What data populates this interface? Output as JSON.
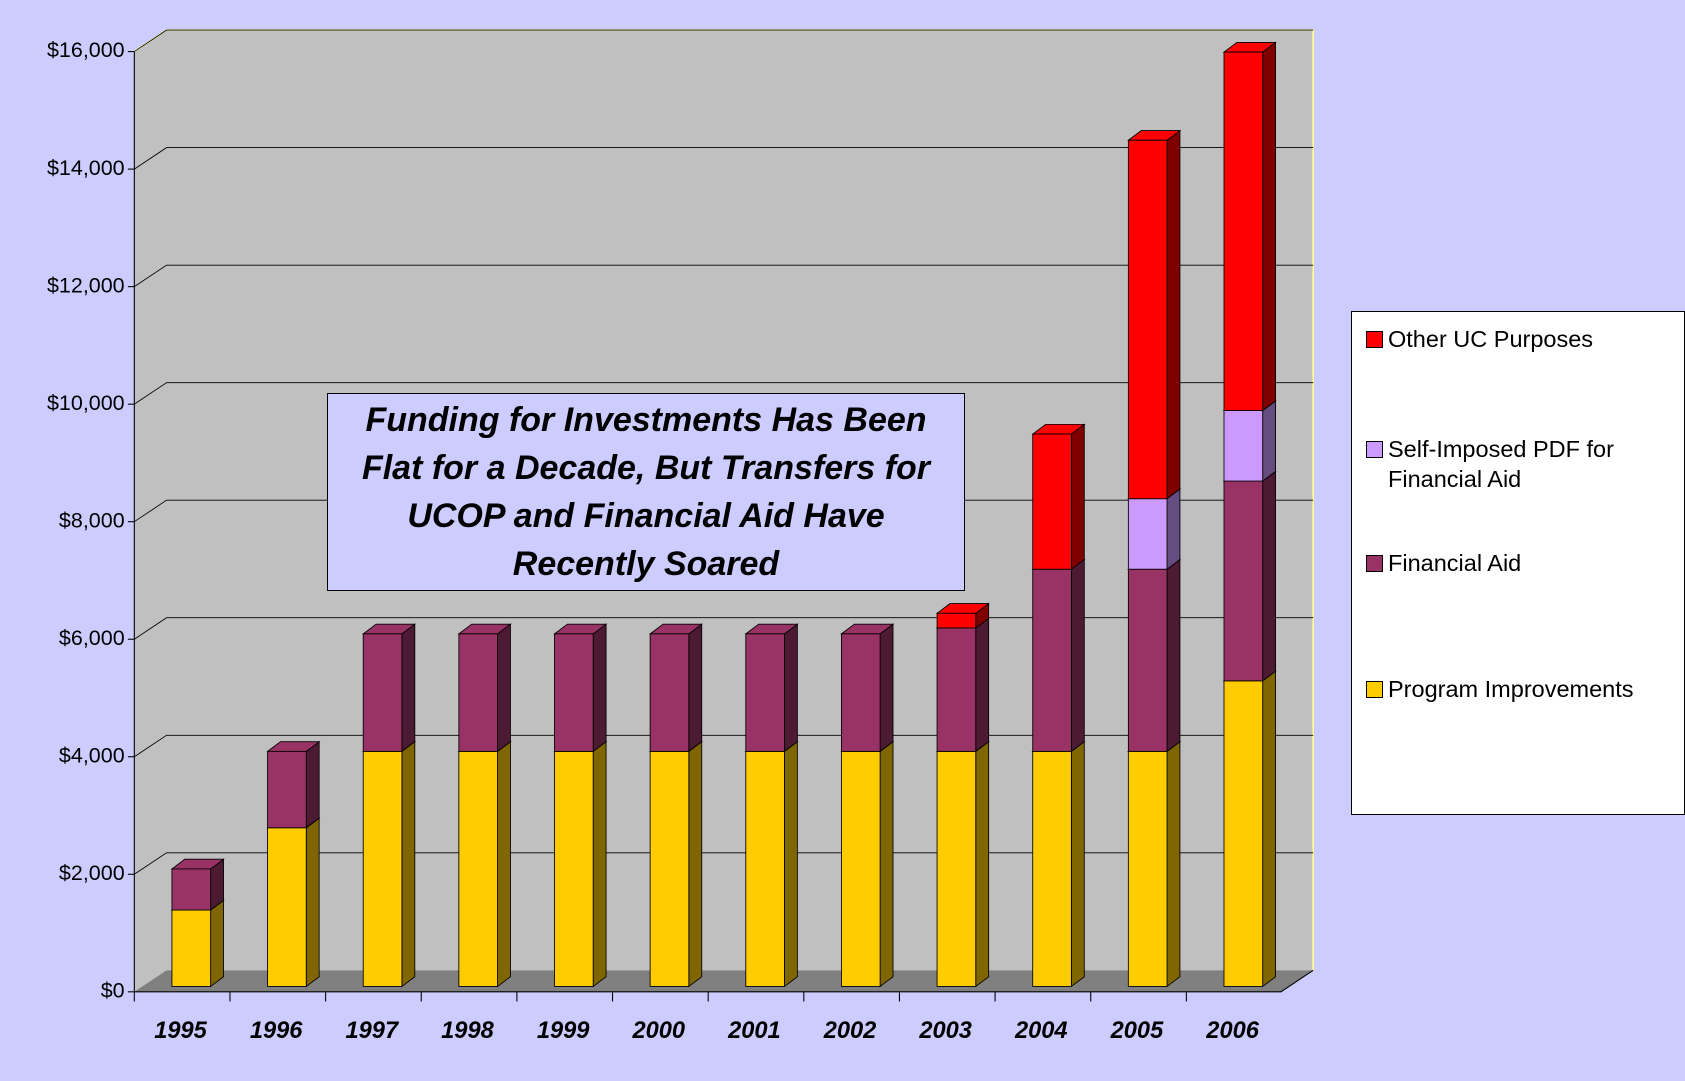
{
  "chart_data": {
    "type": "stacked-bar-3d",
    "annotation": "Funding for Investments Has Been Flat for a Decade, But Transfers for UCOP and Financial Aid Have Recently Soared",
    "categories": [
      "1995",
      "1996",
      "1997",
      "1998",
      "1999",
      "2000",
      "2001",
      "2002",
      "2003",
      "2004",
      "2005",
      "2006"
    ],
    "series": [
      {
        "name": "Program Improvements",
        "color": "#ffcc00",
        "side": "#806600",
        "values": [
          1300,
          2700,
          4000,
          4000,
          4000,
          4000,
          4000,
          4000,
          4000,
          4000,
          4000,
          5200
        ]
      },
      {
        "name": "Financial Aid",
        "color": "#993366",
        "side": "#4d1a33",
        "values": [
          700,
          1300,
          2000,
          2000,
          2000,
          2000,
          2000,
          2000,
          2100,
          3100,
          3100,
          3400
        ]
      },
      {
        "name": "Self-Imposed PDF for Financial Aid",
        "color": "#cc99ff",
        "side": "#664d80",
        "values": [
          0,
          0,
          0,
          0,
          0,
          0,
          0,
          0,
          0,
          0,
          1200,
          1200
        ]
      },
      {
        "name": "Other UC Purposes",
        "color": "#ff0000",
        "side": "#800000",
        "values": [
          0,
          0,
          0,
          0,
          0,
          0,
          0,
          0,
          250,
          2300,
          6100,
          6100
        ]
      }
    ],
    "ylim": [
      0,
      16000
    ],
    "yticks": [
      {
        "value": 0,
        "label": "$0"
      },
      {
        "value": 2000,
        "label": "$2,000"
      },
      {
        "value": 4000,
        "label": "$4,000"
      },
      {
        "value": 6000,
        "label": "$6,000"
      },
      {
        "value": 8000,
        "label": "$8,000"
      },
      {
        "value": 10000,
        "label": "$10,000"
      },
      {
        "value": 12000,
        "label": "$12,000"
      },
      {
        "value": 14000,
        "label": "$14,000"
      },
      {
        "value": 16000,
        "label": "$16,000"
      }
    ],
    "grid": true,
    "legend": "right"
  }
}
